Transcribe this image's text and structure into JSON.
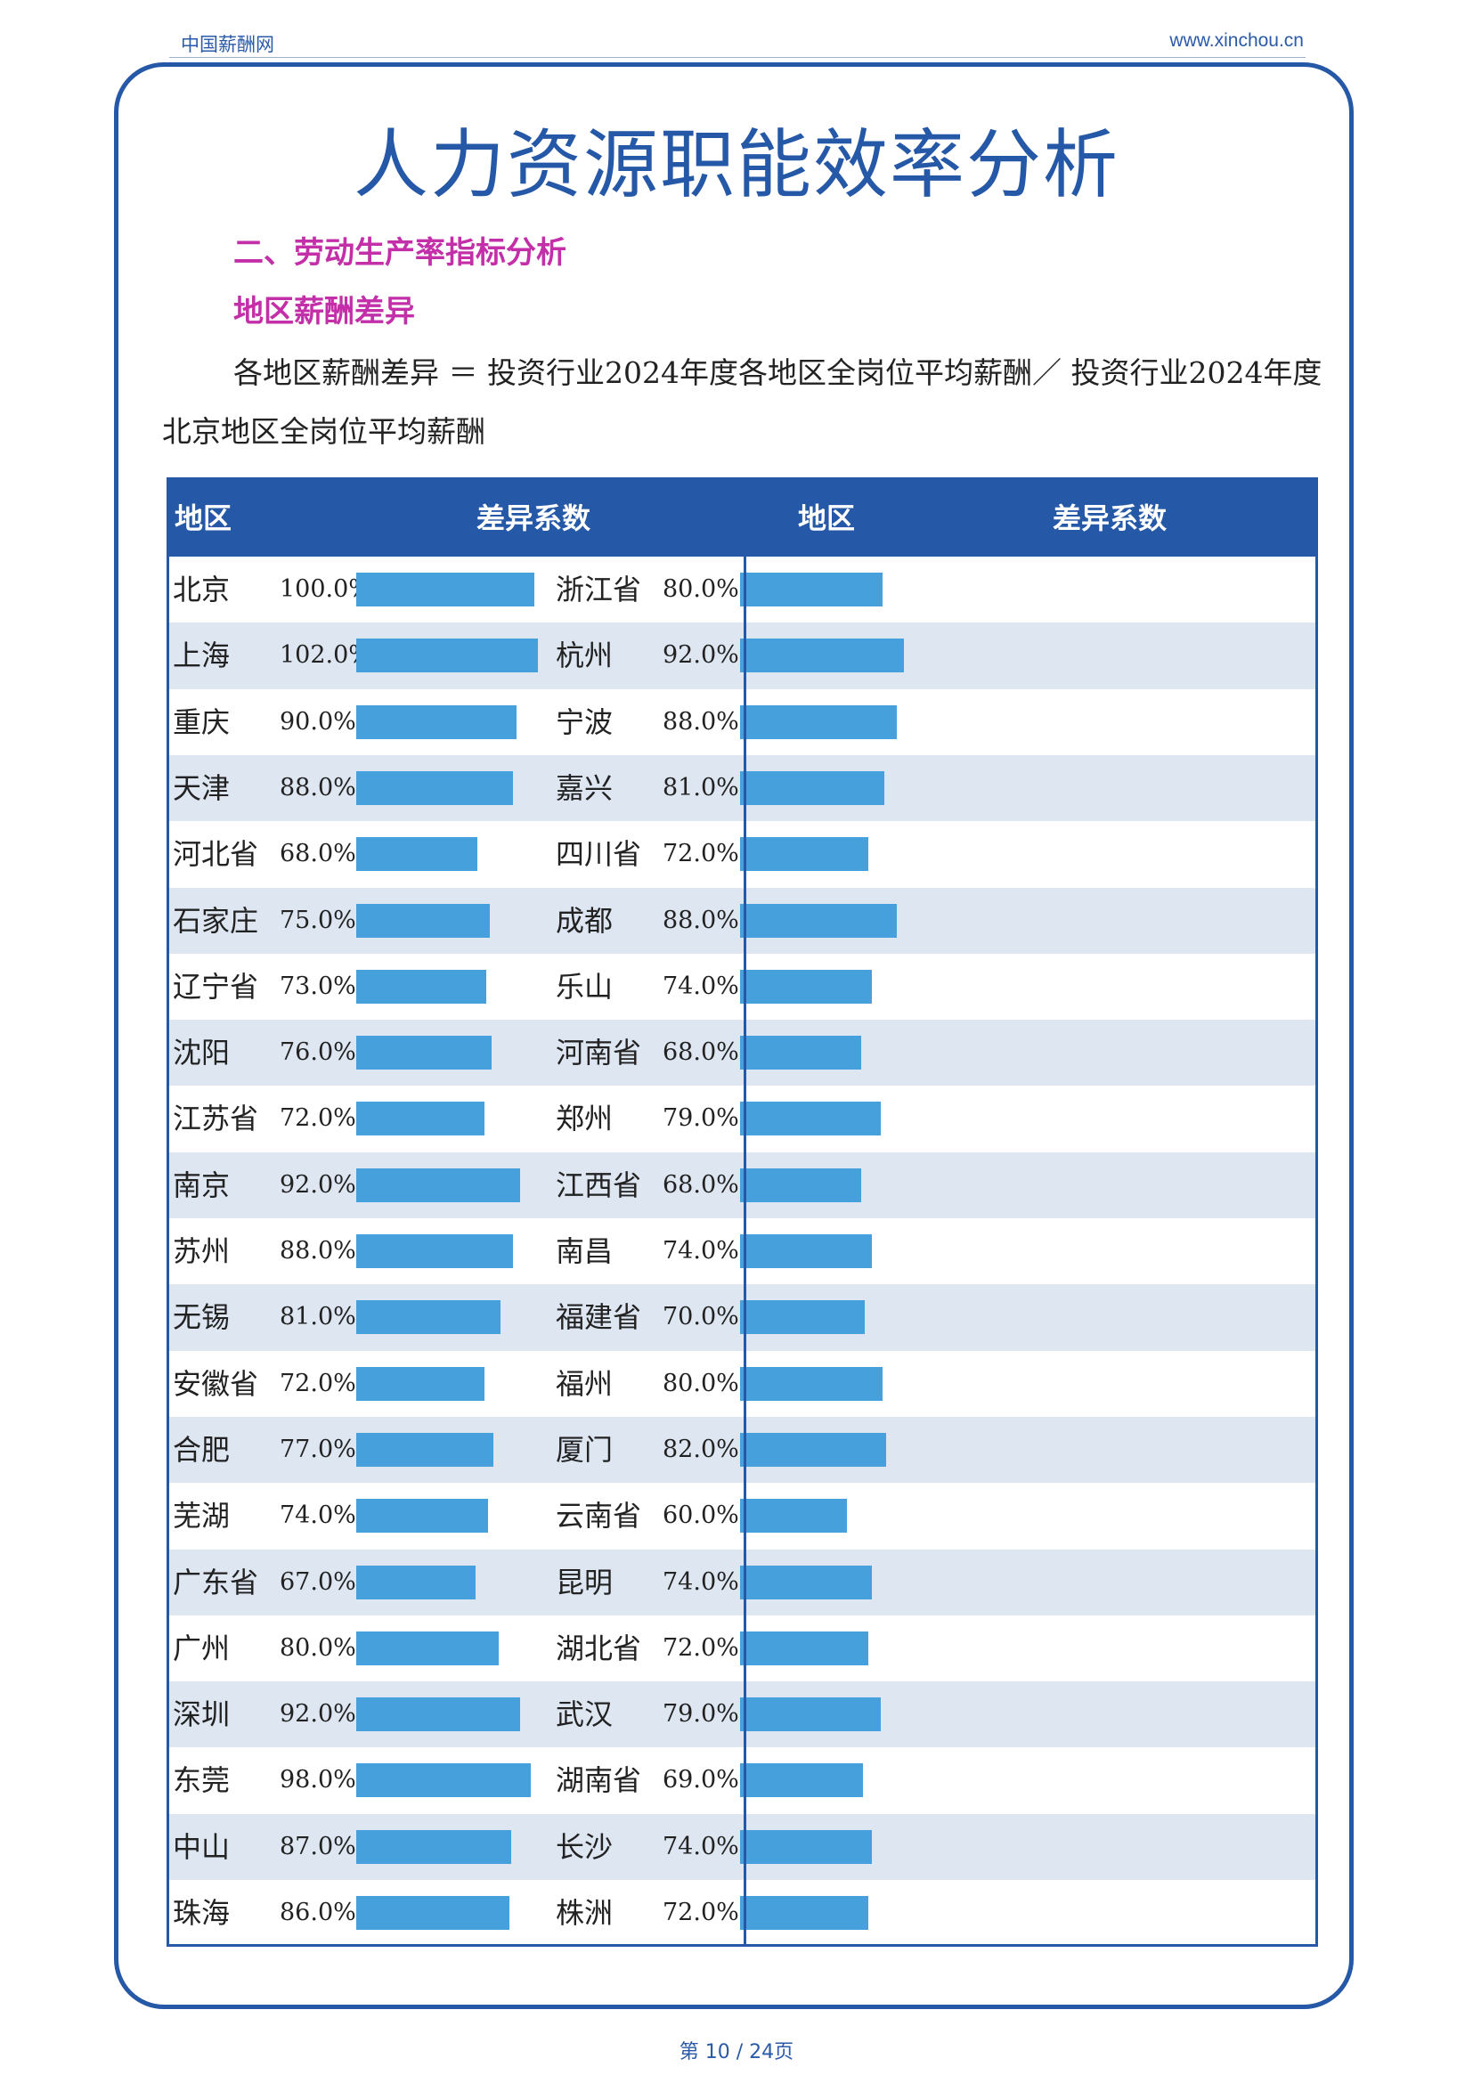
{
  "header": {
    "site_name": "中国薪酬网",
    "site_url": "www.xinchou.cn"
  },
  "title": "人力资源职能效率分析",
  "section_heading": "二、劳动生产率指标分析",
  "subsection_heading": "地区薪酬差异",
  "formula": "各地区薪酬差异 ＝ 投资行业2024年度各地区全岗位平均薪酬／ 投资行业2024年度北京地区全岗位平均薪酬",
  "table": {
    "col_region": "地区",
    "col_coef": "差异系数",
    "bar_color": "#46a0dc",
    "left": [
      {
        "name": "北京",
        "label": "100.0%",
        "value": 100.0
      },
      {
        "name": "上海",
        "label": "102.0%",
        "value": 102.0
      },
      {
        "name": "重庆",
        "label": "90.0%",
        "value": 90.0
      },
      {
        "name": "天津",
        "label": "88.0%",
        "value": 88.0
      },
      {
        "name": "河北省",
        "label": "68.0%",
        "value": 68.0
      },
      {
        "name": "石家庄",
        "label": "75.0%",
        "value": 75.0
      },
      {
        "name": "辽宁省",
        "label": "73.0%",
        "value": 73.0
      },
      {
        "name": "沈阳",
        "label": "76.0%",
        "value": 76.0
      },
      {
        "name": "江苏省",
        "label": "72.0%",
        "value": 72.0
      },
      {
        "name": "南京",
        "label": "92.0%",
        "value": 92.0
      },
      {
        "name": "苏州",
        "label": "88.0%",
        "value": 88.0
      },
      {
        "name": "无锡",
        "label": "81.0%",
        "value": 81.0
      },
      {
        "name": "安徽省",
        "label": "72.0%",
        "value": 72.0
      },
      {
        "name": "合肥",
        "label": "77.0%",
        "value": 77.0
      },
      {
        "name": "芜湖",
        "label": "74.0%",
        "value": 74.0
      },
      {
        "name": "广东省",
        "label": "67.0%",
        "value": 67.0
      },
      {
        "name": "广州",
        "label": "80.0%",
        "value": 80.0
      },
      {
        "name": "深圳",
        "label": "92.0%",
        "value": 92.0
      },
      {
        "name": "东莞",
        "label": "98.0%",
        "value": 98.0
      },
      {
        "name": "中山",
        "label": "87.0%",
        "value": 87.0
      },
      {
        "name": "珠海",
        "label": "86.0%",
        "value": 86.0
      }
    ],
    "right": [
      {
        "name": "浙江省",
        "label": "80.0%",
        "value": 80.0
      },
      {
        "name": "杭州",
        "label": "92.0%",
        "value": 92.0
      },
      {
        "name": "宁波",
        "label": "88.0%",
        "value": 88.0
      },
      {
        "name": "嘉兴",
        "label": "81.0%",
        "value": 81.0
      },
      {
        "name": "四川省",
        "label": "72.0%",
        "value": 72.0
      },
      {
        "name": "成都",
        "label": "88.0%",
        "value": 88.0
      },
      {
        "name": "乐山",
        "label": "74.0%",
        "value": 74.0
      },
      {
        "name": "河南省",
        "label": "68.0%",
        "value": 68.0
      },
      {
        "name": "郑州",
        "label": "79.0%",
        "value": 79.0
      },
      {
        "name": "江西省",
        "label": "68.0%",
        "value": 68.0
      },
      {
        "name": "南昌",
        "label": "74.0%",
        "value": 74.0
      },
      {
        "name": "福建省",
        "label": "70.0%",
        "value": 70.0
      },
      {
        "name": "福州",
        "label": "80.0%",
        "value": 80.0
      },
      {
        "name": "厦门",
        "label": "82.0%",
        "value": 82.0
      },
      {
        "name": "云南省",
        "label": "60.0%",
        "value": 60.0
      },
      {
        "name": "昆明",
        "label": "74.0%",
        "value": 74.0
      },
      {
        "name": "湖北省",
        "label": "72.0%",
        "value": 72.0
      },
      {
        "name": "武汉",
        "label": "79.0%",
        "value": 79.0
      },
      {
        "name": "湖南省",
        "label": "69.0%",
        "value": 69.0
      },
      {
        "name": "长沙",
        "label": "74.0%",
        "value": 74.0
      },
      {
        "name": "株洲",
        "label": "72.0%",
        "value": 72.0
      }
    ]
  },
  "footer": {
    "page": "第 10 / 24页"
  }
}
